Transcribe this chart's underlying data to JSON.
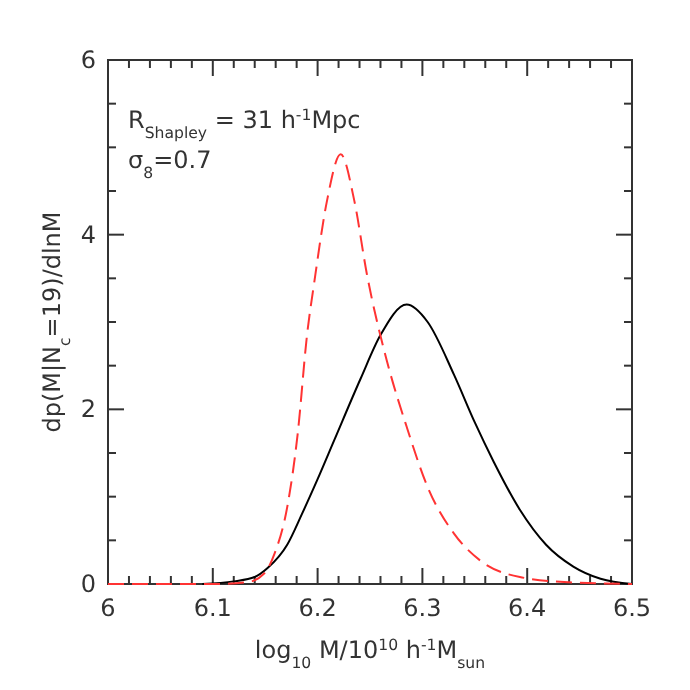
{
  "chart_data": {
    "type": "line",
    "xlabel": "log$_{10}$ M/10$^{10}$ h$^{-1}$M$_{sun}$",
    "ylabel": "dp(M|N$_{c}$=19)/dlnM",
    "annotations": [
      "R$_{Shapley}$ = 31 h$^{-1}$Mpc",
      "σ$_{8}$=0.7"
    ],
    "xlim": [
      6,
      6.5
    ],
    "ylim": [
      0,
      6
    ],
    "xticks": [
      6,
      {
        "value": 6.02,
        "label": null
      },
      {
        "value": 6.04,
        "label": null
      },
      {
        "value": 6.06,
        "label": null
      },
      {
        "value": 6.08,
        "label": null
      },
      6.1,
      {
        "value": 6.12,
        "label": null
      },
      {
        "value": 6.14,
        "label": null
      },
      {
        "value": 6.16,
        "label": null
      },
      {
        "value": 6.18,
        "label": null
      },
      6.2,
      {
        "value": 6.22,
        "label": null
      },
      {
        "value": 6.24,
        "label": null
      },
      {
        "value": 6.26,
        "label": null
      },
      {
        "value": 6.28,
        "label": null
      },
      6.3,
      {
        "value": 6.32,
        "label": null
      },
      {
        "value": 6.34,
        "label": null
      },
      {
        "value": 6.36,
        "label": null
      },
      {
        "value": 6.38,
        "label": null
      },
      6.4,
      {
        "value": 6.42,
        "label": null
      },
      {
        "value": 6.44,
        "label": null
      },
      {
        "value": 6.46,
        "label": null
      },
      {
        "value": 6.48,
        "label": null
      },
      6.5
    ],
    "yticks": [
      0,
      {
        "value": 0.5,
        "label": null
      },
      {
        "value": 1,
        "label": null
      },
      {
        "value": 1.5,
        "label": null
      },
      2,
      {
        "value": 2.5,
        "label": null
      },
      {
        "value": 3,
        "label": null
      },
      {
        "value": 3.5,
        "label": null
      },
      4,
      {
        "value": 4.5,
        "label": null
      },
      {
        "value": 5,
        "label": null
      },
      {
        "value": 5.5,
        "label": null
      },
      6
    ],
    "grid": false,
    "series": [
      {
        "color": "#000000",
        "line_style": "solid",
        "x": [
          6.09,
          6.12,
          6.14,
          6.152,
          6.171,
          6.185,
          6.2,
          6.216,
          6.241,
          6.26,
          6.285,
          6.305,
          6.33,
          6.35,
          6.368,
          6.393,
          6.418,
          6.444,
          6.47,
          6.5
        ],
        "values": [
          0,
          0.03,
          0.08,
          0.18,
          0.45,
          0.8,
          1.2,
          1.65,
          2.35,
          2.85,
          3.2,
          3.0,
          2.4,
          1.85,
          1.4,
          0.85,
          0.45,
          0.2,
          0.06,
          0
        ]
      },
      {
        "color": "#ff3333",
        "line_style": "dashed",
        "x": [
          6,
          6.1,
          6.133,
          6.149,
          6.159,
          6.171,
          6.181,
          6.19,
          6.197,
          6.209,
          6.222,
          6.235,
          6.247,
          6.266,
          6.285,
          6.305,
          6.33,
          6.355,
          6.393,
          6.44,
          6.5
        ],
        "values": [
          0,
          0,
          0.02,
          0.12,
          0.35,
          0.88,
          1.72,
          2.86,
          3.47,
          4.39,
          4.92,
          4.39,
          3.55,
          2.56,
          1.8,
          1.11,
          0.58,
          0.27,
          0.08,
          0.02,
          0
        ]
      }
    ]
  }
}
